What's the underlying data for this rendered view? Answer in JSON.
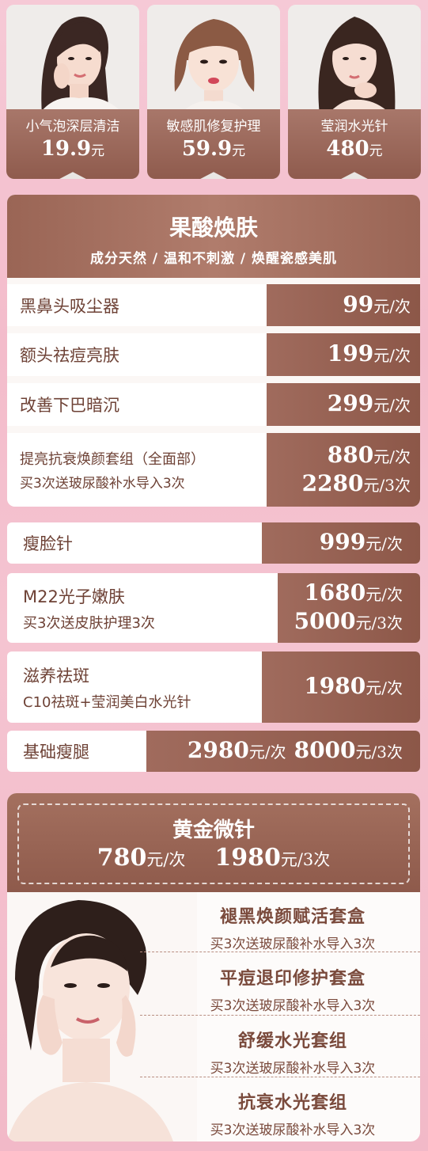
{
  "top_cards": [
    {
      "name": "小气泡深层清洁",
      "price": "19.9",
      "unit": "元"
    },
    {
      "name": "敏感肌修复护理",
      "price": "59.9",
      "unit": "元"
    },
    {
      "name": "莹润水光针",
      "price": "480",
      "unit": "元"
    }
  ],
  "fruit_acid": {
    "title": "果酸焕肤",
    "subtitle": "成分天然 / 温和不刺激 / 焕醒瓷感美肌",
    "items": [
      {
        "label": "黑鼻头吸尘器",
        "price": "99",
        "unit": "元/次"
      },
      {
        "label": "额头祛痘亮肤",
        "price": "199",
        "unit": "元/次"
      },
      {
        "label": "改善下巴暗沉",
        "price": "299",
        "unit": "元/次"
      },
      {
        "label": "提亮抗衰焕颜套组（全面部）",
        "sub": "买3次送玻尿酸补水导入3次",
        "price": "880",
        "unit": "元/次",
        "price2": "2280",
        "unit2": "元/3次"
      }
    ]
  },
  "services": [
    {
      "label": "瘦脸针",
      "price": "999",
      "unit": "元/次"
    },
    {
      "label": "M22光子嫩肤",
      "sub": "买3次送皮肤护理3次",
      "price": "1680",
      "unit": "元/次",
      "price2": "5000",
      "unit2": "元/3次"
    },
    {
      "label": "滋养祛斑",
      "sub": "C10祛斑+莹润美白水光针",
      "price": "1980",
      "unit": "元/次"
    },
    {
      "label": "基础瘦腿",
      "price": "2980",
      "unit": "元/次",
      "price2": "8000",
      "unit2": "元/3次"
    }
  ],
  "gold_needle": {
    "title": "黄金微针",
    "price": "780",
    "unit": "元/次",
    "price2": "1980",
    "unit2": "元/3次",
    "items": [
      {
        "name": "褪黑焕颜赋活套盒",
        "desc": "买3次送玻尿酸补水导入3次"
      },
      {
        "name": "平痘退印修护套盒",
        "desc": "买3次送玻尿酸补水导入3次"
      },
      {
        "name": "舒缓水光套组",
        "desc": "买3次送玻尿酸补水导入3次"
      },
      {
        "name": "抗衰水光套组",
        "desc": "买3次送玻尿酸补水导入3次"
      }
    ]
  },
  "colors": {
    "accent": "#9a6555",
    "text": "#6e4236",
    "background": "#f5c4d1"
  }
}
